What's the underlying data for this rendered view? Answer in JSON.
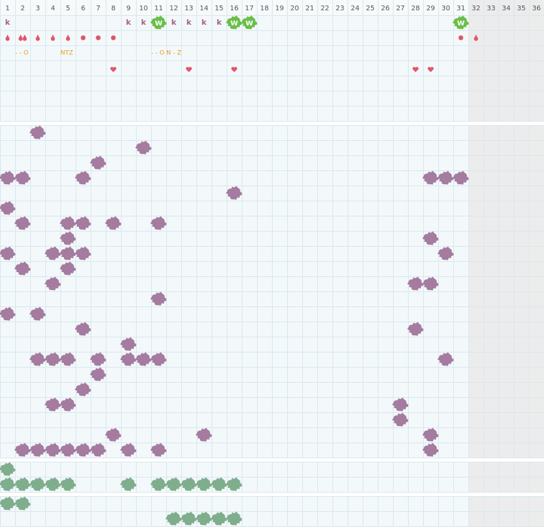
{
  "days": [
    1,
    2,
    3,
    4,
    5,
    6,
    7,
    8,
    9,
    10,
    11,
    12,
    13,
    14,
    15,
    16,
    17,
    18,
    19,
    20,
    21,
    22,
    23,
    24,
    25,
    26,
    27,
    28,
    29,
    30,
    31,
    32,
    33,
    34,
    35,
    36
  ],
  "shaded_from": 32,
  "top": {
    "letters": [
      {
        "day": 1,
        "text": "k",
        "kind": "plain"
      },
      {
        "day": 9,
        "text": "k",
        "kind": "plain"
      },
      {
        "day": 10,
        "text": "k",
        "kind": "plain"
      },
      {
        "day": 11,
        "text": "W",
        "kind": "badge"
      },
      {
        "day": 12,
        "text": "k",
        "kind": "plain"
      },
      {
        "day": 13,
        "text": "k",
        "kind": "plain"
      },
      {
        "day": 14,
        "text": "k",
        "kind": "plain"
      },
      {
        "day": 15,
        "text": "k",
        "kind": "plain"
      },
      {
        "day": 16,
        "text": "W",
        "kind": "badge"
      },
      {
        "day": 17,
        "text": "W",
        "kind": "badge"
      },
      {
        "day": 31,
        "text": "W",
        "kind": "badge"
      }
    ],
    "drops": [
      {
        "day": 1,
        "kind": "drop"
      },
      {
        "day": 2,
        "kind": "double"
      },
      {
        "day": 3,
        "kind": "drop"
      },
      {
        "day": 4,
        "kind": "drop"
      },
      {
        "day": 5,
        "kind": "drop"
      },
      {
        "day": 6,
        "kind": "circle"
      },
      {
        "day": 7,
        "kind": "circle"
      },
      {
        "day": 8,
        "kind": "circle"
      },
      {
        "day": 31,
        "kind": "circle"
      },
      {
        "day": 32,
        "kind": "drop"
      }
    ],
    "notes": [
      {
        "day": 2,
        "text": "- - O"
      },
      {
        "day": 5,
        "text": "NTZ"
      },
      {
        "day": 11,
        "text": "- - O N - Z"
      }
    ],
    "hearts": [
      8,
      13,
      16,
      28,
      29
    ]
  },
  "sections": [
    {
      "color": "#a57b9f",
      "rows": [
        [
          3
        ],
        [
          10
        ],
        [
          7
        ],
        [
          1,
          2,
          6,
          29,
          30,
          31
        ],
        [
          16
        ],
        [
          1
        ],
        [
          2,
          5,
          6,
          8,
          11
        ],
        [
          5,
          29
        ],
        [
          1,
          4,
          5,
          6,
          30
        ],
        [
          2,
          5
        ],
        [
          4,
          28,
          29
        ],
        [
          11
        ],
        [
          1,
          3
        ],
        [
          6,
          28
        ],
        [
          9
        ],
        [
          3,
          4,
          5,
          7,
          9,
          10,
          11,
          30
        ],
        [
          7
        ],
        [
          6
        ],
        [
          4,
          5,
          27
        ],
        [
          27
        ],
        [
          8,
          14,
          29
        ],
        [
          2,
          3,
          4,
          5,
          6,
          7,
          9,
          11,
          29
        ]
      ]
    },
    {
      "color": "#7fae8d",
      "rows": [
        [
          1
        ],
        [
          1,
          2,
          3,
          4,
          5,
          9,
          11,
          12,
          13,
          14,
          15,
          16
        ]
      ]
    },
    {
      "color": "#7fae8d",
      "rows": [
        [
          1,
          2
        ],
        [
          12,
          13,
          14,
          15,
          16
        ]
      ]
    }
  ]
}
